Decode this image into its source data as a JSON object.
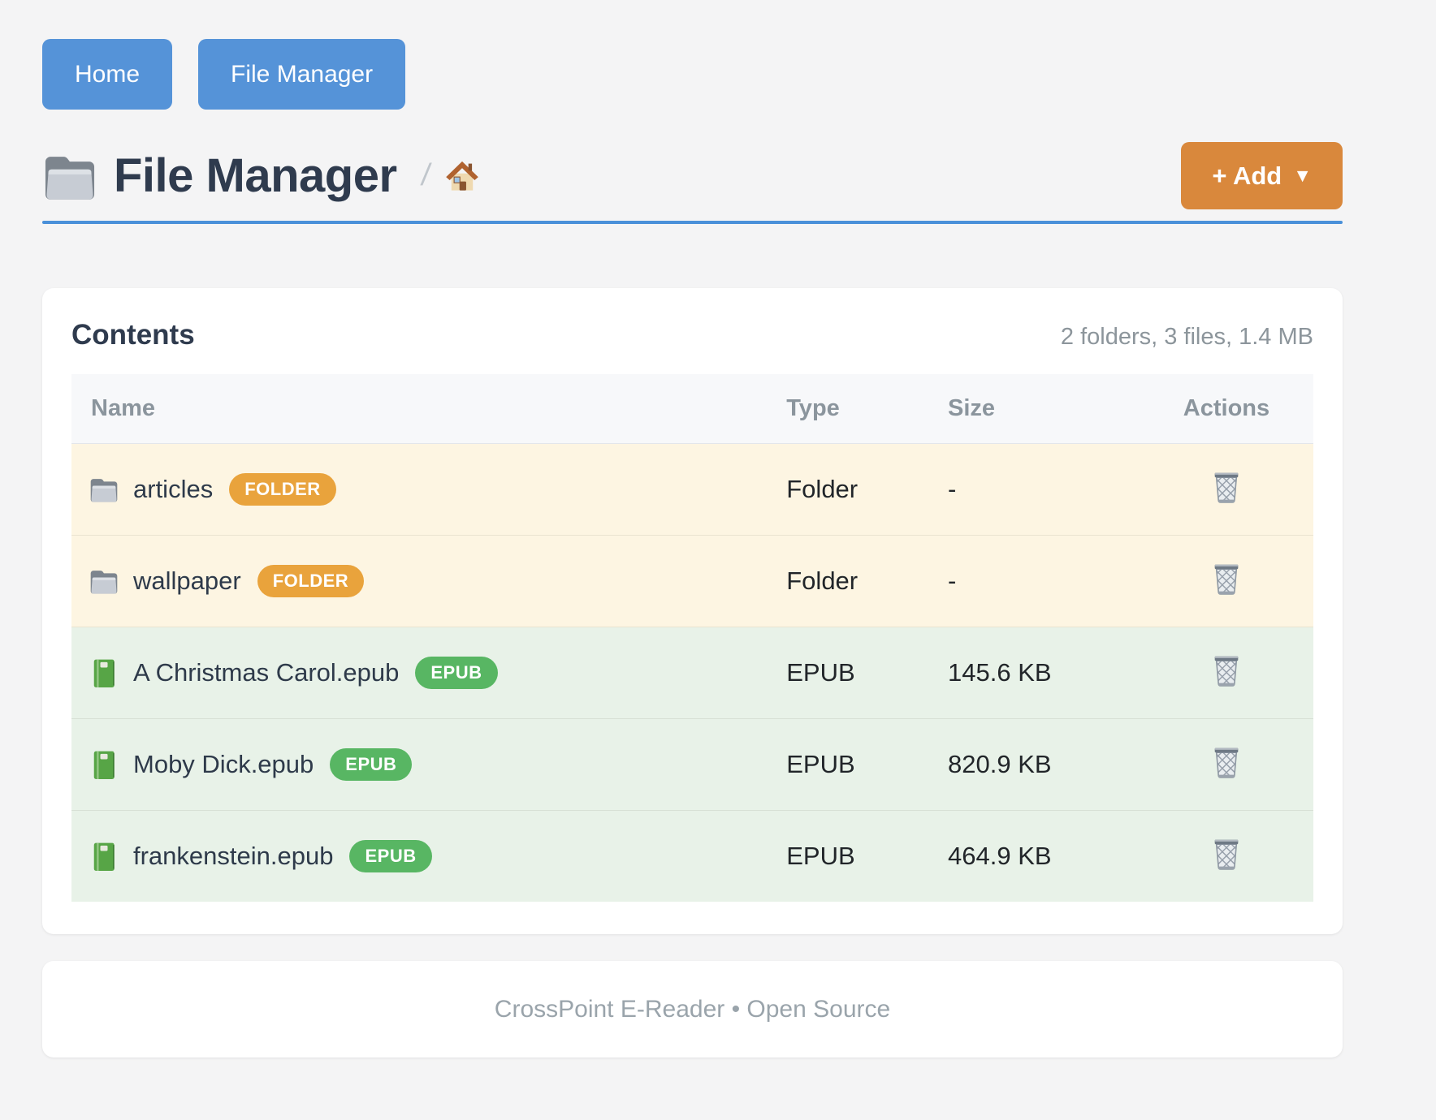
{
  "nav": {
    "items": [
      {
        "label": "Home"
      },
      {
        "label": "File Manager"
      }
    ]
  },
  "header": {
    "icon": "folder-icon",
    "title": "File Manager",
    "breadcrumb": {
      "separator": "/",
      "home_icon": "house-icon"
    },
    "add_button": {
      "label": "+ Add",
      "caret": "▼"
    }
  },
  "contents": {
    "heading": "Contents",
    "summary": "2 folders, 3 files, 1.4 MB",
    "columns": [
      "Name",
      "Type",
      "Size",
      "Actions"
    ],
    "rows": [
      {
        "name": "articles",
        "icon": "folder-icon",
        "badge": "FOLDER",
        "kind": "folder",
        "type": "Folder",
        "size": "-",
        "action_icon": "trash-icon"
      },
      {
        "name": "wallpaper",
        "icon": "folder-icon",
        "badge": "FOLDER",
        "kind": "folder",
        "type": "Folder",
        "size": "-",
        "action_icon": "trash-icon"
      },
      {
        "name": "A Christmas Carol.epub",
        "icon": "book-icon",
        "badge": "EPUB",
        "kind": "epub",
        "type": "EPUB",
        "size": "145.6 KB",
        "action_icon": "trash-icon"
      },
      {
        "name": "Moby Dick.epub",
        "icon": "book-icon",
        "badge": "EPUB",
        "kind": "epub",
        "type": "EPUB",
        "size": "820.9 KB",
        "action_icon": "trash-icon"
      },
      {
        "name": "frankenstein.epub",
        "icon": "book-icon",
        "badge": "EPUB",
        "kind": "epub",
        "type": "EPUB",
        "size": "464.9 KB",
        "action_icon": "trash-icon"
      }
    ]
  },
  "footer": {
    "text": "CrossPoint E-Reader • Open Source"
  },
  "colors": {
    "nav_button_blue": "#5593D8",
    "accent_rule_blue": "#4A90D9",
    "add_button_orange": "#D9883C",
    "folder_badge_orange": "#E9A33C",
    "epub_badge_green": "#58B663",
    "folder_row_bg": "#FDF5E2",
    "epub_row_bg": "#E8F2E8",
    "title_text": "#2F3B4E",
    "muted_text": "#8C959B"
  }
}
